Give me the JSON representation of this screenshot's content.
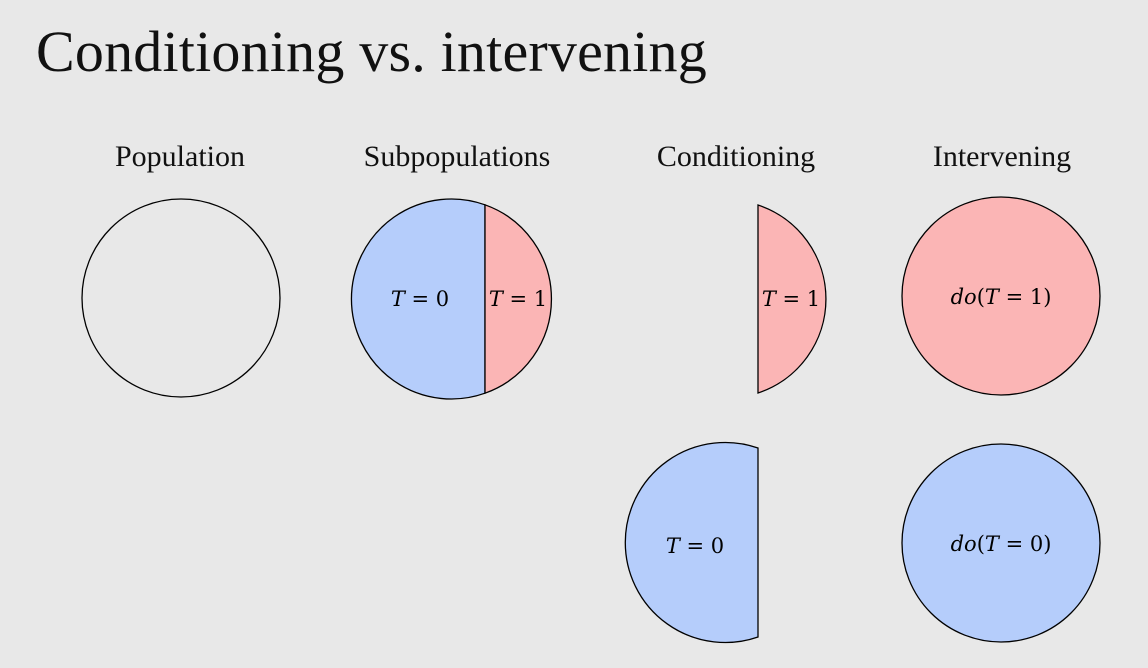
{
  "title": "Conditioning vs. intervening",
  "columns": {
    "population": "Population",
    "subpopulations": "Subpopulations",
    "conditioning": "Conditioning",
    "intervening": "Intervening"
  },
  "colors": {
    "treated": "#fbb5b5",
    "control": "#b5cdfb",
    "outline": "#000000",
    "background": "#e8e8e8"
  },
  "labels": {
    "sub_t0": {
      "var": "T",
      "rest": " = 0"
    },
    "sub_t1": {
      "var": "T",
      "rest": " = 1"
    },
    "cond_t1": {
      "var": "T",
      "rest": " = 1"
    },
    "cond_t0": {
      "var": "T",
      "rest": " = 0"
    },
    "do_t1": {
      "fn": "do",
      "open": "(",
      "var": "T",
      "rest": " = 1)"
    },
    "do_t0": {
      "fn": "do",
      "open": "(",
      "var": "T",
      "rest": " = 0)"
    }
  }
}
